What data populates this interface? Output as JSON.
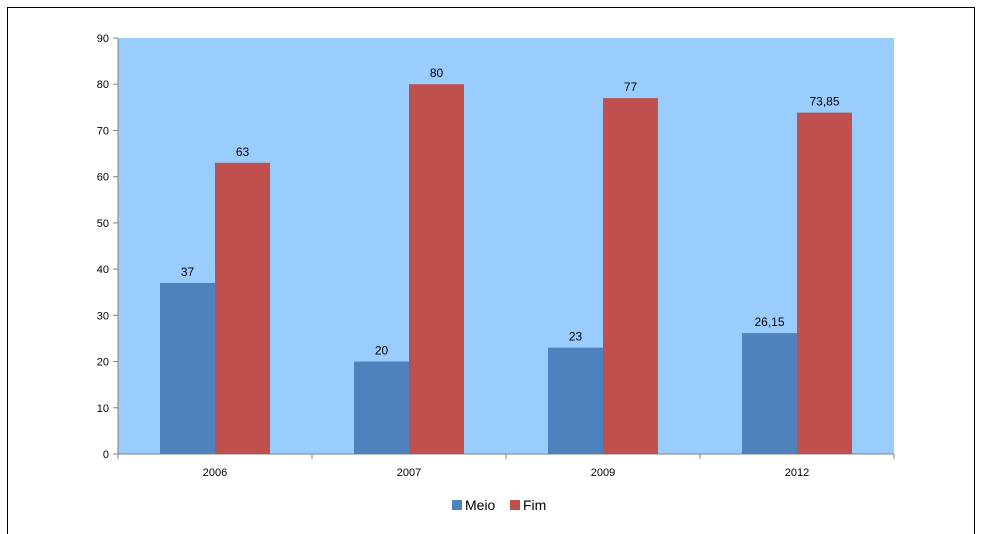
{
  "chart_data": {
    "type": "bar",
    "title": "",
    "xlabel": "",
    "ylabel": "",
    "categories": [
      "2006",
      "2007",
      "2009",
      "2012"
    ],
    "series": [
      {
        "name": "Meio",
        "values": [
          37,
          20,
          23,
          26.15
        ],
        "labels": [
          "37",
          "20",
          "23",
          "26,15"
        ],
        "color": "#4f81bd"
      },
      {
        "name": "Fim",
        "values": [
          63,
          80,
          77,
          73.85
        ],
        "labels": [
          "63",
          "80",
          "77",
          "73,85"
        ],
        "color": "#c0504d"
      }
    ],
    "ylim": [
      0,
      90
    ],
    "yticks": [
      0,
      10,
      20,
      30,
      40,
      50,
      60,
      70,
      80,
      90
    ],
    "grid": false,
    "plot_background": "#99ccff",
    "legend_position": "bottom"
  }
}
